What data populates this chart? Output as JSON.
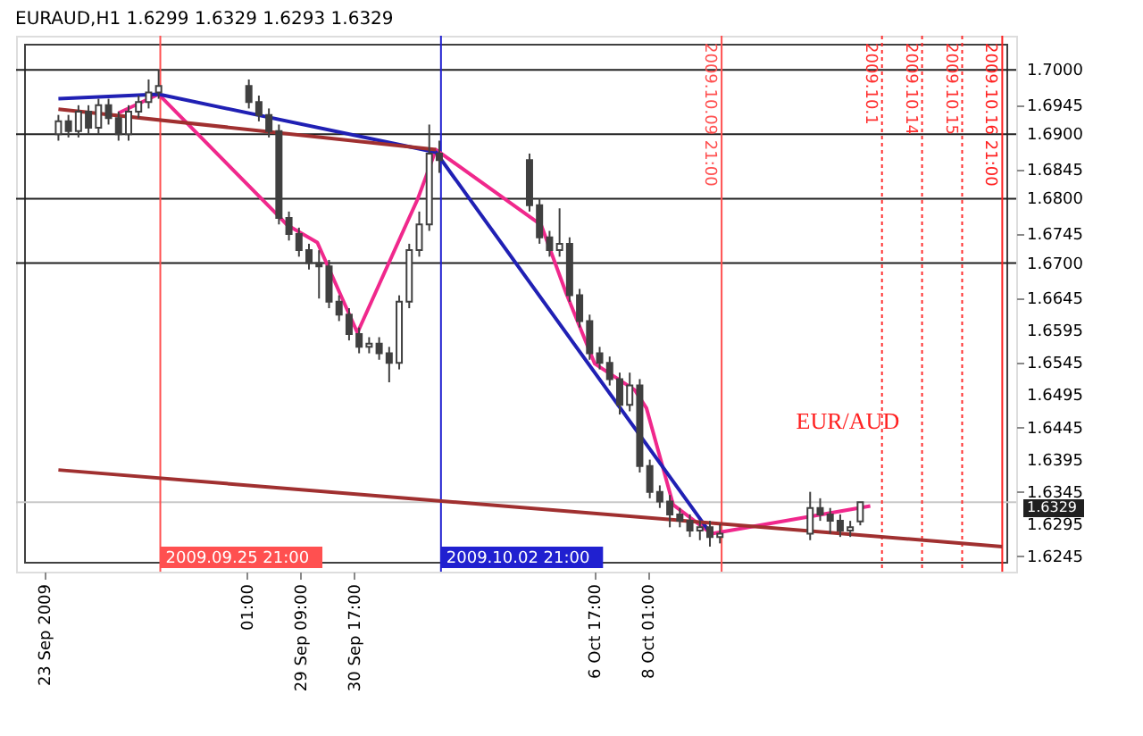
{
  "chart_data": {
    "type": "candlestick",
    "title": "EURAUD,H1  1.6299 1.6329 1.6293 1.6329",
    "color": "#404040",
    "x": [
      "2009-09-23T08:00",
      "2009-09-23T14:00",
      "2009-09-23T20:00",
      "2009-09-24T02:00",
      "2009-09-24T08:00",
      "2009-09-24T14:00",
      "2009-09-24T20:00",
      "2009-09-25T02:00",
      "2009-09-25T08:00",
      "2009-09-25T14:00",
      "2009-09-25T20:00",
      "2009-09-28T02:00",
      "2009-09-28T08:00",
      "2009-09-28T14:00",
      "2009-09-28T20:00",
      "2009-09-29T02:00",
      "2009-09-29T08:00",
      "2009-09-29T14:00",
      "2009-09-29T20:00",
      "2009-09-30T02:00",
      "2009-09-30T08:00",
      "2009-09-30T14:00",
      "2009-09-30T20:00",
      "2009-10-01T02:00",
      "2009-10-01T08:00",
      "2009-10-01T14:00",
      "2009-10-01T20:00",
      "2009-10-02T02:00",
      "2009-10-02T08:00",
      "2009-10-02T14:00",
      "2009-10-02T20:00",
      "2009-10-05T02:00",
      "2009-10-05T08:00",
      "2009-10-05T14:00",
      "2009-10-05T20:00",
      "2009-10-06T02:00",
      "2009-10-06T08:00",
      "2009-10-06T14:00",
      "2009-10-06T20:00",
      "2009-10-07T02:00",
      "2009-10-07T08:00",
      "2009-10-07T14:00",
      "2009-10-07T20:00",
      "2009-10-08T02:00",
      "2009-10-08T08:00",
      "2009-10-08T14:00",
      "2009-10-08T20:00",
      "2009-10-09T02:00",
      "2009-10-09T08:00",
      "2009-10-09T14:00",
      "2009-10-09T20:00",
      "2009-10-12T02:00",
      "2009-10-12T08:00",
      "2009-10-12T14:00",
      "2009-10-12T20:00",
      "2009-10-13T02:00",
      "2009-10-13T08:00"
    ],
    "ohlc": [
      [
        1.69,
        1.693,
        1.689,
        1.692
      ],
      [
        1.692,
        1.693,
        1.6895,
        1.6905
      ],
      [
        1.6905,
        1.6945,
        1.6895,
        1.6935
      ],
      [
        1.6935,
        1.6945,
        1.69,
        1.691
      ],
      [
        1.691,
        1.6955,
        1.69,
        1.6945
      ],
      [
        1.6945,
        1.6955,
        1.6915,
        1.6925
      ],
      [
        1.6925,
        1.6935,
        1.689,
        1.69
      ],
      [
        1.69,
        1.6945,
        1.689,
        1.6935
      ],
      [
        1.6935,
        1.696,
        1.6925,
        1.695
      ],
      [
        1.695,
        1.6985,
        1.694,
        1.6965
      ],
      [
        1.6965,
        1.7,
        1.6955,
        1.6975
      ],
      [
        1.6975,
        1.6985,
        1.694,
        1.695
      ],
      [
        1.695,
        1.696,
        1.692,
        1.693
      ],
      [
        1.693,
        1.694,
        1.6895,
        1.6905
      ],
      [
        1.6905,
        1.6915,
        1.676,
        1.677
      ],
      [
        1.677,
        1.678,
        1.6735,
        1.6745
      ],
      [
        1.6745,
        1.6755,
        1.671,
        1.672
      ],
      [
        1.672,
        1.673,
        1.669,
        1.67
      ],
      [
        1.67,
        1.672,
        1.6645,
        1.6695
      ],
      [
        1.6695,
        1.6705,
        1.663,
        1.664
      ],
      [
        1.664,
        1.665,
        1.661,
        1.662
      ],
      [
        1.662,
        1.663,
        1.658,
        1.659
      ],
      [
        1.659,
        1.66,
        1.656,
        1.657
      ],
      [
        1.657,
        1.6585,
        1.656,
        1.6575
      ],
      [
        1.6575,
        1.6585,
        1.655,
        1.656
      ],
      [
        1.656,
        1.657,
        1.6515,
        1.6545
      ],
      [
        1.6545,
        1.665,
        1.6535,
        1.664
      ],
      [
        1.664,
        1.673,
        1.663,
        1.672
      ],
      [
        1.672,
        1.678,
        1.671,
        1.676
      ],
      [
        1.676,
        1.6915,
        1.675,
        1.687
      ],
      [
        1.687,
        1.689,
        1.684,
        1.686
      ],
      [
        1.686,
        1.687,
        1.678,
        1.679
      ],
      [
        1.679,
        1.68,
        1.673,
        1.674
      ],
      [
        1.674,
        1.675,
        1.671,
        1.672
      ],
      [
        1.672,
        1.6785,
        1.671,
        1.673
      ],
      [
        1.673,
        1.674,
        1.664,
        1.665
      ],
      [
        1.665,
        1.666,
        1.66,
        1.661
      ],
      [
        1.661,
        1.662,
        1.655,
        1.656
      ],
      [
        1.656,
        1.657,
        1.6535,
        1.6545
      ],
      [
        1.6545,
        1.6555,
        1.651,
        1.652
      ],
      [
        1.652,
        1.653,
        1.6465,
        1.648
      ],
      [
        1.648,
        1.653,
        1.647,
        1.651
      ],
      [
        1.651,
        1.652,
        1.6375,
        1.6385
      ],
      [
        1.6385,
        1.6395,
        1.6335,
        1.6345
      ],
      [
        1.6345,
        1.6355,
        1.632,
        1.633
      ],
      [
        1.633,
        1.634,
        1.629,
        1.631
      ],
      [
        1.631,
        1.632,
        1.629,
        1.63
      ],
      [
        1.63,
        1.631,
        1.6275,
        1.6285
      ],
      [
        1.6285,
        1.63,
        1.627,
        1.629
      ],
      [
        1.629,
        1.63,
        1.626,
        1.6275
      ],
      [
        1.6275,
        1.6295,
        1.6265,
        1.628
      ],
      [
        1.628,
        1.6345,
        1.627,
        1.632
      ],
      [
        1.632,
        1.6335,
        1.63,
        1.631
      ],
      [
        1.631,
        1.632,
        1.628,
        1.63
      ],
      [
        1.63,
        1.631,
        1.6275,
        1.6285
      ],
      [
        1.6285,
        1.63,
        1.6275,
        1.629
      ],
      [
        1.6299,
        1.6329,
        1.6293,
        1.6329
      ]
    ],
    "series": [
      {
        "type": "line",
        "color": "#f0288c",
        "x": [
          "2009-09-24T20:00",
          "2009-09-25T20:00",
          "2009-09-28T19:00",
          "2009-09-29T01:00",
          "2009-09-29T19:00",
          "2009-09-30T19:00",
          "2009-10-02T00:00",
          "2009-10-02T07:00",
          "2009-10-02T18:00",
          "2009-10-05T09:00",
          "2009-10-06T00:00",
          "2009-10-06T17:00",
          "2009-10-07T17:00",
          "2009-10-08T00:00",
          "2009-10-08T16:00",
          "2009-10-09T15:00",
          "2009-10-13T14:00"
        ],
        "values": [
          1.6933,
          1.6962,
          1.6775,
          1.6759,
          1.6732,
          1.6592,
          1.6759,
          1.6799,
          1.6876,
          1.6759,
          1.6653,
          1.6544,
          1.6503,
          1.6475,
          1.6325,
          1.628,
          1.6323
        ]
      },
      {
        "type": "line",
        "color": "#2020b4",
        "x": [
          "2009-09-23T08:00",
          "2009-09-25T20:00",
          "2009-10-02T18:00",
          "2009-10-09T14:00"
        ],
        "values": [
          1.6955,
          1.6962,
          1.6872,
          1.6282
        ]
      },
      {
        "type": "line",
        "color": "#a03030",
        "x": [
          "2009-09-23T08:00",
          "2009-10-02T18:00"
        ],
        "values": [
          1.6939,
          1.6876
        ]
      },
      {
        "type": "line",
        "color": "#a03030",
        "x": [
          "2009-09-23T08:00",
          "2009-10-16T21:00"
        ],
        "values": [
          1.6379,
          1.626
        ]
      }
    ],
    "xlim": [
      "2009-09-22T12:00",
      "2009-10-17T00:00"
    ],
    "ylim": [
      1.6235,
      1.7039
    ],
    "xticks": [
      {
        "value": "2009-09-23",
        "label": "23 Sep 2009"
      },
      {
        "value": "2009-09-28T01:00",
        "label": "01:00"
      },
      {
        "value": "2009-09-29T09:00",
        "label": "29 Sep 09:00"
      },
      {
        "value": "2009-09-30T17:00",
        "label": "30 Sep 17:00"
      },
      {
        "value": "2009-10-06T17:00",
        "label": "6 Oct 17:00"
      },
      {
        "value": "2009-10-08T01:00",
        "label": "8 Oct 01:00"
      }
    ],
    "yticks": [
      {
        "value": 1.7,
        "label": "1.7000"
      },
      {
        "value": 1.6945,
        "label": "1.6945"
      },
      {
        "value": 1.69,
        "label": "1.6900"
      },
      {
        "value": 1.6845,
        "label": "1.6845"
      },
      {
        "value": 1.68,
        "label": "1.6800"
      },
      {
        "value": 1.6745,
        "label": "1.6745"
      },
      {
        "value": 1.67,
        "label": "1.6700"
      },
      {
        "value": 1.6645,
        "label": "1.6645"
      },
      {
        "value": 1.6595,
        "label": "1.6595"
      },
      {
        "value": 1.6545,
        "label": "1.6545"
      },
      {
        "value": 1.6495,
        "label": "1.6495"
      },
      {
        "value": 1.6445,
        "label": "1.6445"
      },
      {
        "value": 1.6395,
        "label": "1.6395"
      },
      {
        "value": 1.6345,
        "label": "1.6345"
      },
      {
        "value": 1.6295,
        "label": "1.6295"
      },
      {
        "value": 1.6245,
        "label": "1.6245"
      }
    ],
    "ref_lines": [
      {
        "axis": "y",
        "value": 1.7,
        "color": "#202020"
      },
      {
        "axis": "y",
        "value": 1.69,
        "color": "#202020"
      },
      {
        "axis": "y",
        "value": 1.68,
        "color": "#202020"
      },
      {
        "axis": "y",
        "value": 1.67,
        "color": "#202020"
      },
      {
        "axis": "y",
        "value": 1.6329,
        "color": "#c8c8c8",
        "label": "1.6329"
      },
      {
        "axis": "x",
        "value": "2009-09-25T21:00",
        "label": "2009.09.25 21:00",
        "color": "#ff5050"
      },
      {
        "axis": "x",
        "value": "2009-10-02T21:00",
        "label": "2009.10.02 21:00",
        "color": "#2020d0"
      },
      {
        "axis": "x",
        "value": "2009-10-09T21:00",
        "label": "2009.10.09 21:00",
        "color": "#ff5050"
      },
      {
        "axis": "x",
        "value": "2009-10-13T21:00",
        "label": "2009.10.1",
        "color": "#ff3030",
        "line_style": "dotted"
      },
      {
        "axis": "x",
        "value": "2009-10-14T21:00",
        "label": "2009.10.14",
        "color": "#ff3030",
        "line_style": "dotted"
      },
      {
        "axis": "x",
        "value": "2009-10-15T21:00",
        "label": "2009.10.15",
        "color": "#ff3030",
        "line_style": "dotted"
      },
      {
        "axis": "x",
        "value": "2009-10-16T21:00",
        "label": "2009.10.16 21:00",
        "color": "#ff2020"
      }
    ],
    "annotations": [
      "EUR/AUD"
    ]
  }
}
